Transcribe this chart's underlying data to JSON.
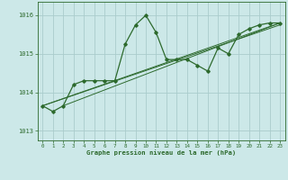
{
  "title": "Graphe pression niveau de la mer (hPa)",
  "background_color": "#cce8e8",
  "grid_color": "#aacccc",
  "line_color": "#2d6a2d",
  "xlim": [
    -0.5,
    23.5
  ],
  "ylim": [
    1012.75,
    1016.35
  ],
  "yticks": [
    1013,
    1014,
    1015,
    1016
  ],
  "xticks": [
    0,
    1,
    2,
    3,
    4,
    5,
    6,
    7,
    8,
    9,
    10,
    11,
    12,
    13,
    14,
    15,
    16,
    17,
    18,
    19,
    20,
    21,
    22,
    23
  ],
  "main_line": [
    [
      0,
      1013.65
    ],
    [
      1,
      1013.5
    ],
    [
      2,
      1013.65
    ],
    [
      3,
      1014.2
    ],
    [
      4,
      1014.3
    ],
    [
      5,
      1014.3
    ],
    [
      6,
      1014.3
    ],
    [
      7,
      1014.3
    ],
    [
      8,
      1015.25
    ],
    [
      9,
      1015.75
    ],
    [
      10,
      1016.0
    ],
    [
      11,
      1015.55
    ],
    [
      12,
      1014.85
    ],
    [
      13,
      1014.85
    ],
    [
      14,
      1014.85
    ],
    [
      15,
      1014.7
    ],
    [
      16,
      1014.55
    ],
    [
      17,
      1015.15
    ],
    [
      18,
      1015.0
    ],
    [
      19,
      1015.5
    ],
    [
      20,
      1015.65
    ],
    [
      21,
      1015.75
    ],
    [
      22,
      1015.8
    ],
    [
      23,
      1015.8
    ]
  ],
  "trend_line1": [
    [
      0,
      1013.65
    ],
    [
      23,
      1015.8
    ]
  ],
  "trend_line2": [
    [
      2,
      1013.65
    ],
    [
      23,
      1015.8
    ]
  ],
  "trend_line3": [
    [
      0,
      1013.65
    ],
    [
      23,
      1015.75
    ]
  ],
  "figsize": [
    3.2,
    2.0
  ],
  "dpi": 100
}
